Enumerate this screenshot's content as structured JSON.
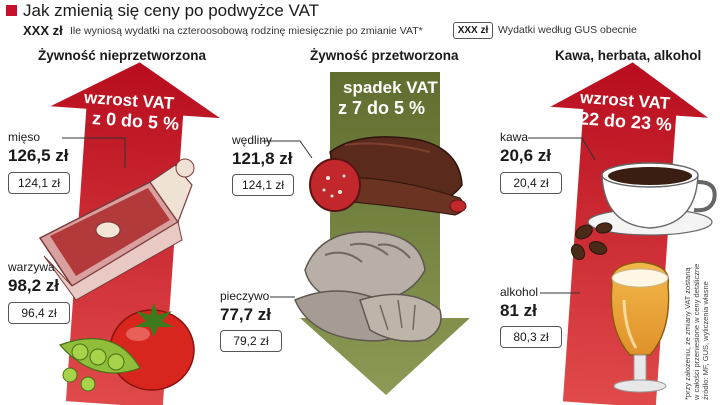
{
  "title": "Jak zmienią się ceny po podwyżce VAT",
  "legend": {
    "new_marker": "XXX zł",
    "new_text": "Ile wyniosą wydatki na czteroosobową rodzinę miesięcznie po zmianie VAT*",
    "old_marker": "XXX zł",
    "old_text": "Wydatki według GUS obecnie"
  },
  "categories": [
    {
      "name": "Żywność nieprzetworzona",
      "vat_line1": "wzrost VAT",
      "vat_line2": "z 0 do 5 %",
      "arrow_color": "#c8102e",
      "items": [
        {
          "label": "mięso",
          "new": "126,5 zł",
          "old": "124,1 zł",
          "icon": "meat-icon"
        },
        {
          "label": "warzywa",
          "new": "98,2 zł",
          "old": "96,4 zł",
          "icon": "vegetables-icon"
        }
      ]
    },
    {
      "name": "Żywność przetworzona",
      "vat_line1": "spadek VAT",
      "vat_line2": "z 7 do 5 %",
      "arrow_color": "#6b7a3a",
      "items": [
        {
          "label": "wędliny",
          "new": "121,8 zł",
          "old": "124,1 zł",
          "icon": "sausage-icon"
        },
        {
          "label": "pieczywo",
          "new": "77,7 zł",
          "old": "79,2 zł",
          "icon": "bread-icon"
        }
      ]
    },
    {
      "name": "Kawa, herbata, alkohol",
      "vat_line1": "wzrost VAT",
      "vat_line2": "z 22 do 23 %",
      "arrow_color": "#c8102e",
      "items": [
        {
          "label": "kawa",
          "new": "20,6 zł",
          "old": "20,4 zł",
          "icon": "coffee-cup-icon"
        },
        {
          "label": "alkohol",
          "new": "81 zł",
          "old": "80,3 zł",
          "icon": "beer-glass-icon"
        }
      ]
    }
  ],
  "footnote": "*przy założeniu, że zmiany VAT zostaną w całości przeniesione w ceny detaliczne źródło: MF, GUS, wyliczenia własne"
}
